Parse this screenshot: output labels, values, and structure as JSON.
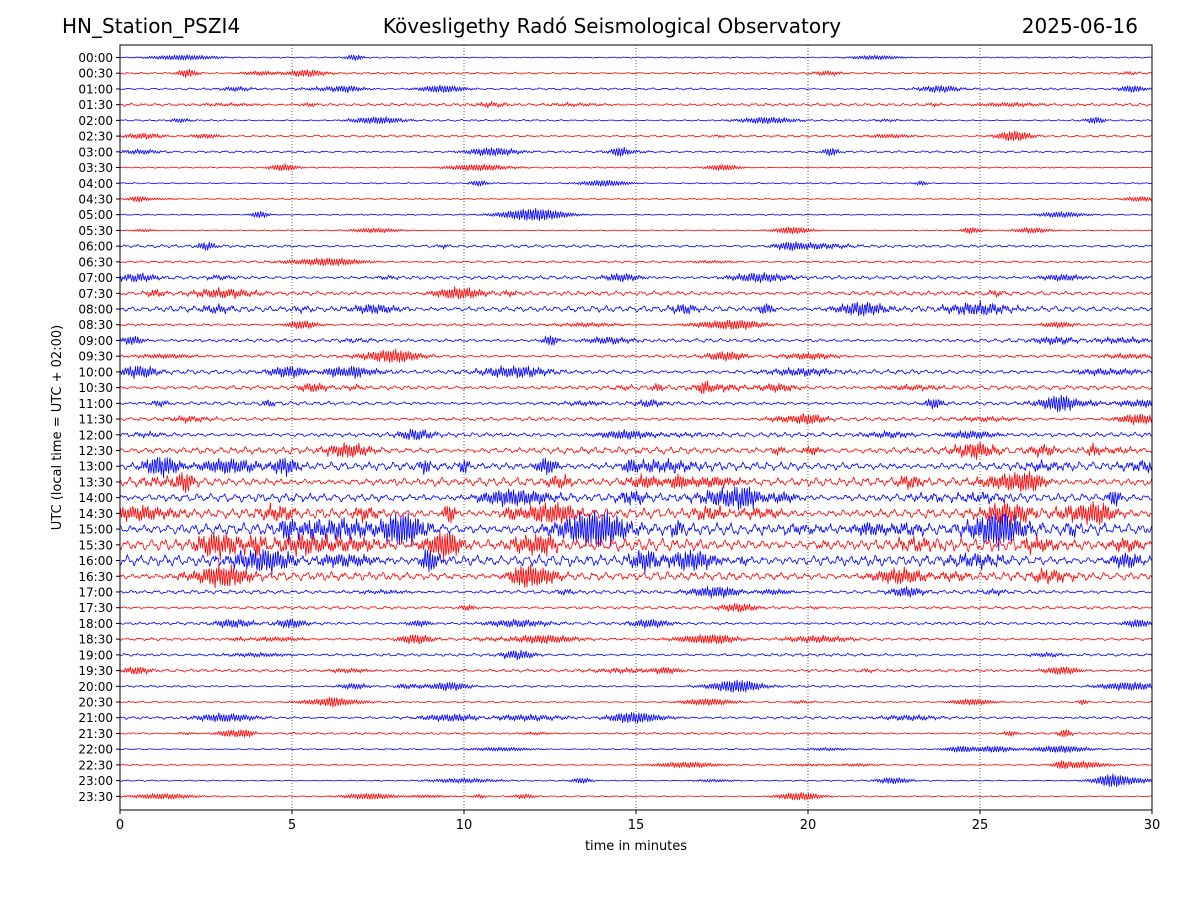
{
  "header": {
    "station": "HN_Station_PSZI4",
    "observatory": "Kövesligethy Radó Seismological Observatory",
    "date": "2025-06-16"
  },
  "chart_data": {
    "type": "line",
    "subtype": "helicorder",
    "title": "Kövesligethy Radó Seismological Observatory",
    "xlabel": "time in minutes",
    "ylabel": "UTC (local time = UTC + 02:00)",
    "xlim": [
      0,
      30
    ],
    "x_ticks": [
      0,
      5,
      10,
      15,
      20,
      25,
      30
    ],
    "x_grid": "dotted vertical lines at every 5 minutes",
    "row_labels": [
      "00:00",
      "00:30",
      "01:00",
      "01:30",
      "02:00",
      "02:30",
      "03:00",
      "03:30",
      "04:00",
      "04:30",
      "05:00",
      "05:30",
      "06:00",
      "06:30",
      "07:00",
      "07:30",
      "08:00",
      "08:30",
      "09:00",
      "09:30",
      "10:00",
      "10:30",
      "11:00",
      "11:30",
      "12:00",
      "12:30",
      "13:00",
      "13:30",
      "14:00",
      "14:30",
      "15:00",
      "15:30",
      "16:00",
      "16:30",
      "17:00",
      "17:30",
      "18:00",
      "18:30",
      "19:00",
      "19:30",
      "20:00",
      "20:30",
      "21:00",
      "21:30",
      "22:00",
      "22:30",
      "23:00",
      "23:30"
    ],
    "trace_colors": [
      "#0000ff",
      "#ff0000"
    ],
    "activity": [
      0.1,
      0.2,
      0.2,
      0.3,
      0.15,
      0.2,
      0.2,
      0.1,
      0.1,
      0.1,
      0.1,
      0.08,
      0.3,
      0.2,
      0.4,
      0.5,
      0.7,
      0.25,
      0.4,
      0.3,
      0.5,
      0.5,
      0.4,
      0.4,
      0.5,
      0.8,
      1.0,
      1.0,
      1.0,
      1.2,
      1.5,
      1.5,
      1.3,
      1.0,
      0.4,
      0.3,
      0.3,
      0.3,
      0.3,
      0.3,
      0.2,
      0.1,
      0.3,
      0.2,
      0.1,
      0.1,
      0.1,
      0.1
    ]
  }
}
